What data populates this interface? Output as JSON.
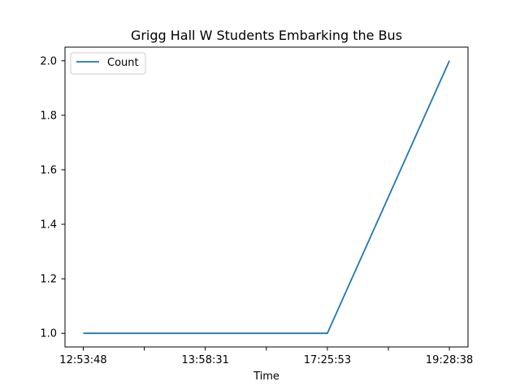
{
  "chart_data": {
    "type": "line",
    "title": "Grigg Hall W Students Embarking the Bus",
    "xlabel": "Time",
    "ylabel": "",
    "x": [
      "12:53:48",
      "",
      "13:58:31",
      "",
      "17:25:53",
      "",
      "19:28:38"
    ],
    "series": [
      {
        "name": "Count",
        "values": [
          1,
          1,
          1,
          1,
          1,
          1.5,
          2
        ],
        "color": "#1f77b4"
      }
    ],
    "x_tick_labels": [
      "12:53:48",
      "",
      "13:58:31",
      "",
      "17:25:53",
      "",
      "19:28:38"
    ],
    "y_ticks": [
      1.0,
      1.2,
      1.4,
      1.6,
      1.8,
      2.0
    ],
    "y_tick_labels": [
      "1.0",
      "1.2",
      "1.4",
      "1.6",
      "1.8",
      "2.0"
    ],
    "ylim": [
      0.95,
      2.05
    ],
    "grid": false,
    "legend": {
      "placement": "upper-left",
      "entries": [
        "Count"
      ]
    }
  }
}
